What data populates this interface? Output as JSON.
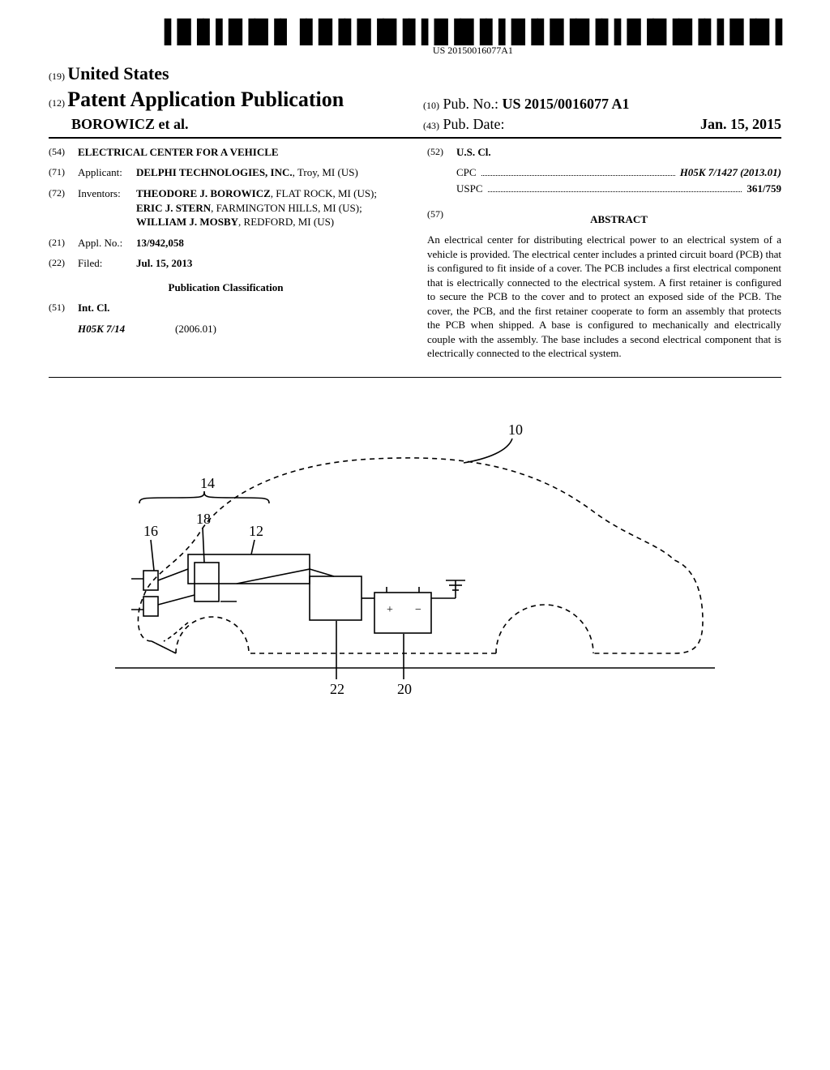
{
  "barcode_number": "US 20150016077A1",
  "header": {
    "code_country": "(19)",
    "country": "United States",
    "code_pub": "(12)",
    "pub_title": "Patent Application Publication",
    "authors_line": "BOROWICZ et al.",
    "code_pubno": "(10)",
    "pubno_label": "Pub. No.:",
    "pubno_value": "US 2015/0016077 A1",
    "code_pubdate": "(43)",
    "pubdate_label": "Pub. Date:",
    "pubdate_value": "Jan. 15, 2015"
  },
  "biblio": {
    "title_code": "(54)",
    "title": "ELECTRICAL CENTER FOR A VEHICLE",
    "applicant_code": "(71)",
    "applicant_label": "Applicant:",
    "applicant_value": "DELPHI TECHNOLOGIES, INC.",
    "applicant_loc": "Troy, MI (US)",
    "inventors_code": "(72)",
    "inventors_label": "Inventors:",
    "inventors_value": "THEODORE J. BOROWICZ, FLAT ROCK, MI (US); ERIC J. STERN, FARMINGTON HILLS, MI (US); WILLIAM J. MOSBY, REDFORD, MI (US)",
    "applno_code": "(21)",
    "applno_label": "Appl. No.:",
    "applno_value": "13/942,058",
    "filed_code": "(22)",
    "filed_label": "Filed:",
    "filed_value": "Jul. 15, 2013",
    "pubclass_title": "Publication Classification",
    "intcl_code": "(51)",
    "intcl_label": "Int. Cl.",
    "intcl_class": "H05K 7/14",
    "intcl_date": "(2006.01)",
    "uscl_code": "(52)",
    "uscl_label": "U.S. Cl.",
    "cpc_label": "CPC",
    "cpc_value": "H05K 7/1427 (2013.01)",
    "uspc_label": "USPC",
    "uspc_value": "361/759",
    "abstract_code": "(57)",
    "abstract_title": "ABSTRACT",
    "abstract_text": "An electrical center for distributing electrical power to an electrical system of a vehicle is provided. The electrical center includes a printed circuit board (PCB) that is configured to fit inside of a cover. The PCB includes a first electrical component that is electrically connected to the electrical system. A first retainer is configured to secure the PCB to the cover and to protect an exposed side of the PCB. The cover, the PCB, and the first retainer cooperate to form an assembly that protects the PCB when shipped. A base is configured to mechanically and electrically couple with the assembly. The base includes a second electrical component that is electrically connected to the electrical system."
  },
  "figure": {
    "labels": {
      "n10": "10",
      "n12": "12",
      "n14": "14",
      "n16": "16",
      "n18": "18",
      "n20": "20",
      "n22": "22"
    }
  }
}
